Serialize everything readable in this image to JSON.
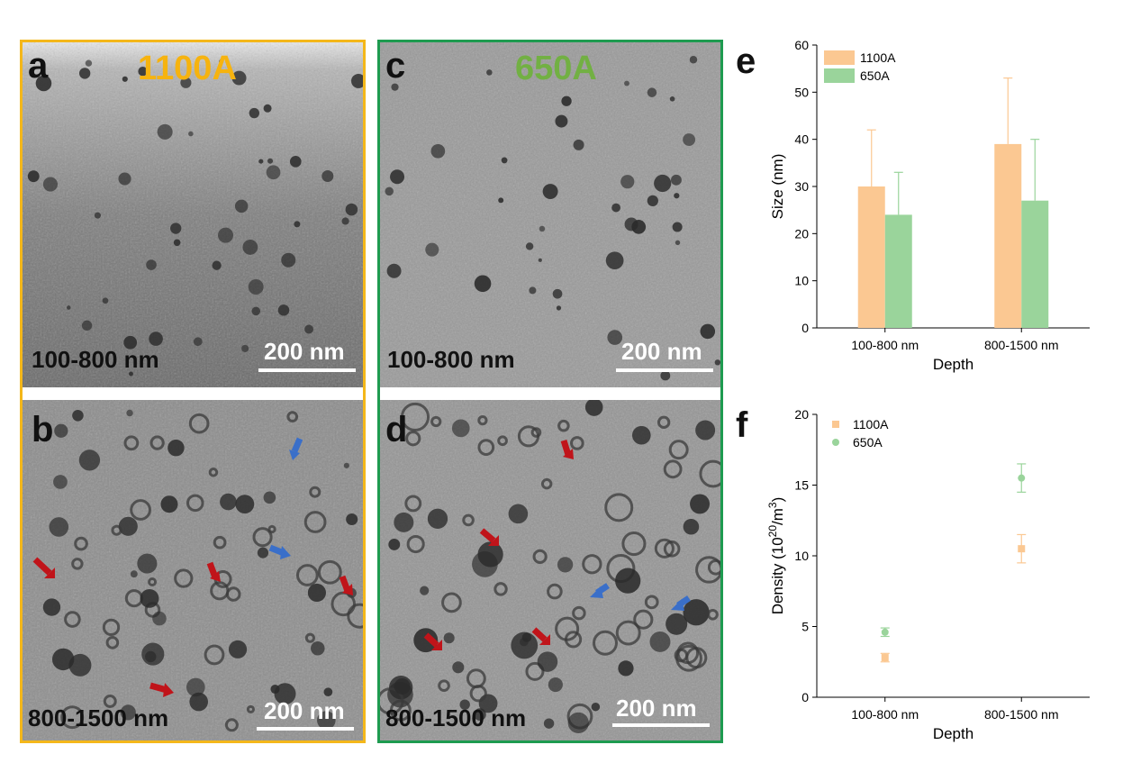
{
  "figure": {
    "panels": [
      {
        "letter": "a",
        "title": "1100A",
        "title_color": "#f6b30f",
        "depth": "100-800 nm",
        "scale": "200 nm"
      },
      {
        "letter": "b",
        "title": "",
        "depth": "800-1500 nm",
        "scale": "200 nm"
      },
      {
        "letter": "c",
        "title": "650A",
        "title_color": "#72b043",
        "depth": "100-800 nm",
        "scale": "200 nm"
      },
      {
        "letter": "d",
        "title": "",
        "depth": "800-1500 nm",
        "scale": "200 nm"
      }
    ],
    "frame_colors": {
      "left": "#f4b71a",
      "right": "#1e9b50"
    },
    "arrow_colors": {
      "red": "#c0141a",
      "blue": "#3a6fc9"
    }
  },
  "chart_data": [
    {
      "panel": "e",
      "type": "bar",
      "xlabel": "Depth",
      "ylabel": "Size (nm)",
      "ylim": [
        0,
        60
      ],
      "yticks": [
        "0",
        "10",
        "20",
        "30",
        "40",
        "50",
        "60"
      ],
      "categories": [
        "100-800 nm",
        "800-1500 nm"
      ],
      "legend_position": "top-left",
      "series": [
        {
          "name": "1100A",
          "color": "#fbc892",
          "values": [
            30,
            39
          ],
          "error": [
            12,
            14
          ]
        },
        {
          "name": "650A",
          "color": "#9ad49b",
          "values": [
            24,
            27
          ],
          "error": [
            9,
            13
          ]
        }
      ]
    },
    {
      "panel": "f",
      "type": "scatter",
      "xlabel": "Depth",
      "ylabel_main": "Density (10",
      "ylabel_sup1": "20",
      "ylabel_mid": "/m",
      "ylabel_sup2": "3",
      "ylabel_end": ")",
      "ylim": [
        0,
        20
      ],
      "yticks": [
        "0",
        "5",
        "10",
        "15",
        "20"
      ],
      "categories": [
        "100-800 nm",
        "800-1500 nm"
      ],
      "legend_position": "top-left",
      "series": [
        {
          "name": "1100A",
          "color": "#fbc892",
          "marker": "square",
          "values": [
            2.8,
            10.5
          ],
          "error": [
            0.3,
            1.0
          ]
        },
        {
          "name": "650A",
          "color": "#9ad49b",
          "marker": "circle",
          "values": [
            4.6,
            15.5
          ],
          "error": [
            0.3,
            1.0
          ]
        }
      ]
    }
  ]
}
